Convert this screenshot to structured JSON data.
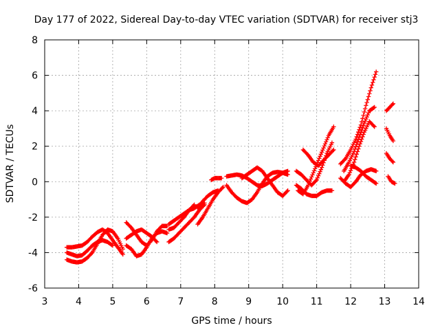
{
  "chart_data": {
    "type": "scatter",
    "title": "Day 177 of 2022, Sidereal Day-to-day VTEC variation (SDTVAR) for receiver stj3",
    "xlabel": "GPS time / hours",
    "ylabel": "SDTVAR / TECUs",
    "xlim": [
      3,
      14
    ],
    "ylim": [
      -6,
      8
    ],
    "x_ticks": [
      3,
      4,
      5,
      6,
      7,
      8,
      9,
      10,
      11,
      12,
      13,
      14
    ],
    "y_ticks": [
      -6,
      -4,
      -2,
      0,
      2,
      4,
      6,
      8
    ],
    "grid": true,
    "marker": "plus",
    "color": "#ff0000",
    "series": [
      {
        "x": [
          3.65,
          3.8,
          3.95,
          4.1,
          4.25,
          4.4,
          4.55,
          4.7,
          4.85,
          5.0,
          5.15,
          5.3
        ],
        "y": [
          -4.4,
          -4.5,
          -4.55,
          -4.5,
          -4.3,
          -4.0,
          -3.5,
          -3.0,
          -2.7,
          -2.8,
          -3.2,
          -3.8
        ]
      },
      {
        "x": [
          3.65,
          3.8,
          3.95,
          4.1,
          4.25,
          4.4,
          4.55,
          4.7,
          4.85,
          5.0,
          5.15,
          5.3
        ],
        "y": [
          -3.7,
          -3.7,
          -3.65,
          -3.6,
          -3.4,
          -3.1,
          -2.85,
          -2.7,
          -2.9,
          -3.3,
          -3.7,
          -4.1
        ]
      },
      {
        "x": [
          3.65,
          3.8,
          3.95,
          4.1,
          4.25,
          4.4,
          4.55,
          4.7,
          4.85,
          5.0
        ],
        "y": [
          -4.0,
          -4.1,
          -4.2,
          -4.15,
          -3.9,
          -3.6,
          -3.4,
          -3.3,
          -3.4,
          -3.6
        ]
      },
      {
        "x": [
          5.4,
          5.55,
          5.7,
          5.85,
          6.0,
          6.15,
          6.3,
          6.45,
          6.6
        ],
        "y": [
          -2.3,
          -2.6,
          -3.0,
          -3.4,
          -3.6,
          -3.3,
          -2.8,
          -2.5,
          -2.5
        ]
      },
      {
        "x": [
          5.4,
          5.55,
          5.7,
          5.85,
          6.0,
          6.15,
          6.3,
          6.45,
          6.6
        ],
        "y": [
          -3.6,
          -3.8,
          -4.2,
          -4.1,
          -3.7,
          -3.2,
          -2.9,
          -2.8,
          -2.9
        ]
      },
      {
        "x": [
          5.4,
          5.55,
          5.7,
          5.85,
          6.0,
          6.15,
          6.3
        ],
        "y": [
          -3.2,
          -3.0,
          -2.8,
          -2.7,
          -2.9,
          -3.1,
          -3.4
        ]
      },
      {
        "x": [
          6.65,
          6.8,
          6.95,
          7.1,
          7.25,
          7.4,
          7.55,
          7.7
        ],
        "y": [
          -2.4,
          -2.2,
          -2.0,
          -1.8,
          -1.6,
          -1.5,
          -1.3,
          -1.2
        ]
      },
      {
        "x": [
          6.65,
          6.8,
          6.95,
          7.1,
          7.25,
          7.4,
          7.55,
          7.7
        ],
        "y": [
          -3.4,
          -3.2,
          -2.9,
          -2.6,
          -2.3,
          -2.0,
          -1.6,
          -1.3
        ]
      },
      {
        "x": [
          6.65,
          6.8,
          6.95,
          7.1,
          7.25,
          7.4
        ],
        "y": [
          -2.7,
          -2.6,
          -2.3,
          -2.0,
          -1.6,
          -1.3
        ]
      },
      {
        "x": [
          7.5,
          7.65,
          7.8,
          7.95,
          8.1,
          8.25
        ],
        "y": [
          -2.4,
          -2.0,
          -1.5,
          -1.0,
          -0.6,
          -0.3
        ]
      },
      {
        "x": [
          7.5,
          7.65,
          7.8,
          7.95,
          8.1
        ],
        "y": [
          -1.5,
          -1.1,
          -0.8,
          -0.6,
          -0.5
        ]
      },
      {
        "x": [
          7.9,
          8.0,
          8.1,
          8.2
        ],
        "y": [
          0.1,
          0.2,
          0.2,
          0.2
        ]
      },
      {
        "x": [
          8.35,
          8.5,
          8.65,
          8.8,
          8.95,
          9.1,
          9.25,
          9.4,
          9.55,
          9.7,
          9.85,
          10.0,
          10.15
        ],
        "y": [
          -0.2,
          -0.6,
          -0.9,
          -1.1,
          -1.2,
          -1.0,
          -0.6,
          -0.1,
          0.3,
          0.5,
          0.55,
          0.5,
          0.4
        ]
      },
      {
        "x": [
          8.35,
          8.5,
          8.65,
          8.8,
          8.95,
          9.1,
          9.25,
          9.4,
          9.55,
          9.7,
          9.85,
          10.0,
          10.15
        ],
        "y": [
          0.3,
          0.35,
          0.4,
          0.35,
          0.2,
          0.0,
          -0.2,
          -0.25,
          -0.1,
          0.1,
          0.3,
          0.5,
          0.6
        ]
      },
      {
        "x": [
          8.8,
          8.95,
          9.1,
          9.25,
          9.4,
          9.55,
          9.7,
          9.85,
          10.0,
          10.15
        ],
        "y": [
          0.2,
          0.4,
          0.6,
          0.8,
          0.6,
          0.2,
          -0.2,
          -0.6,
          -0.8,
          -0.5
        ]
      },
      {
        "x": [
          10.4,
          10.55,
          10.7,
          10.85,
          11.0,
          11.15,
          11.3,
          11.45
        ],
        "y": [
          -0.2,
          -0.4,
          -0.7,
          -0.8,
          -0.8,
          -0.6,
          -0.5,
          -0.5
        ]
      },
      {
        "x": [
          10.4,
          10.55,
          10.7,
          10.85,
          11.0,
          11.15,
          11.3,
          11.45
        ],
        "y": [
          0.6,
          0.4,
          0.1,
          -0.2,
          0.1,
          0.8,
          1.6,
          2.2
        ]
      },
      {
        "x": [
          10.45,
          10.6,
          10.75,
          10.9,
          11.05,
          11.2,
          11.35,
          11.5
        ],
        "y": [
          -0.5,
          -0.7,
          -0.2,
          0.5,
          1.2,
          1.9,
          2.6,
          3.1
        ]
      },
      {
        "x": [
          10.6,
          10.75,
          10.9,
          11.05,
          11.2,
          11.35,
          11.5
        ],
        "y": [
          1.8,
          1.5,
          1.1,
          0.9,
          1.2,
          1.5,
          1.8
        ]
      },
      {
        "x": [
          11.7,
          11.85,
          12.0,
          12.15,
          12.3,
          12.45,
          12.6,
          12.75
        ],
        "y": [
          0.2,
          -0.1,
          -0.3,
          0.0,
          0.4,
          0.6,
          0.7,
          0.6
        ]
      },
      {
        "x": [
          11.7,
          11.85,
          12.0,
          12.15,
          12.3,
          12.45,
          12.6,
          12.75
        ],
        "y": [
          1.0,
          1.3,
          1.8,
          2.4,
          3.2,
          4.3,
          5.3,
          6.2
        ]
      },
      {
        "x": [
          11.8,
          11.95,
          12.1,
          12.25,
          12.4,
          12.55,
          12.7
        ],
        "y": [
          0.6,
          1.1,
          1.7,
          2.5,
          3.3,
          4.0,
          4.2
        ]
      },
      {
        "x": [
          11.8,
          11.95,
          12.1,
          12.25,
          12.4,
          12.55,
          12.7
        ],
        "y": [
          0.0,
          0.4,
          1.1,
          2.0,
          2.8,
          3.4,
          3.1
        ]
      },
      {
        "x": [
          12.0,
          12.15,
          12.3,
          12.45,
          12.6,
          12.75
        ],
        "y": [
          0.9,
          0.8,
          0.6,
          0.3,
          0.1,
          -0.1
        ]
      },
      {
        "x": [
          13.05,
          13.15,
          13.25
        ],
        "y": [
          3.0,
          2.6,
          2.3
        ]
      },
      {
        "x": [
          13.05,
          13.15,
          13.25
        ],
        "y": [
          4.0,
          4.2,
          4.4
        ]
      },
      {
        "x": [
          13.05,
          13.15,
          13.25
        ],
        "y": [
          1.6,
          1.3,
          1.1
        ]
      },
      {
        "x": [
          13.1,
          13.2,
          13.3
        ],
        "y": [
          0.3,
          0.0,
          -0.1
        ]
      }
    ]
  }
}
